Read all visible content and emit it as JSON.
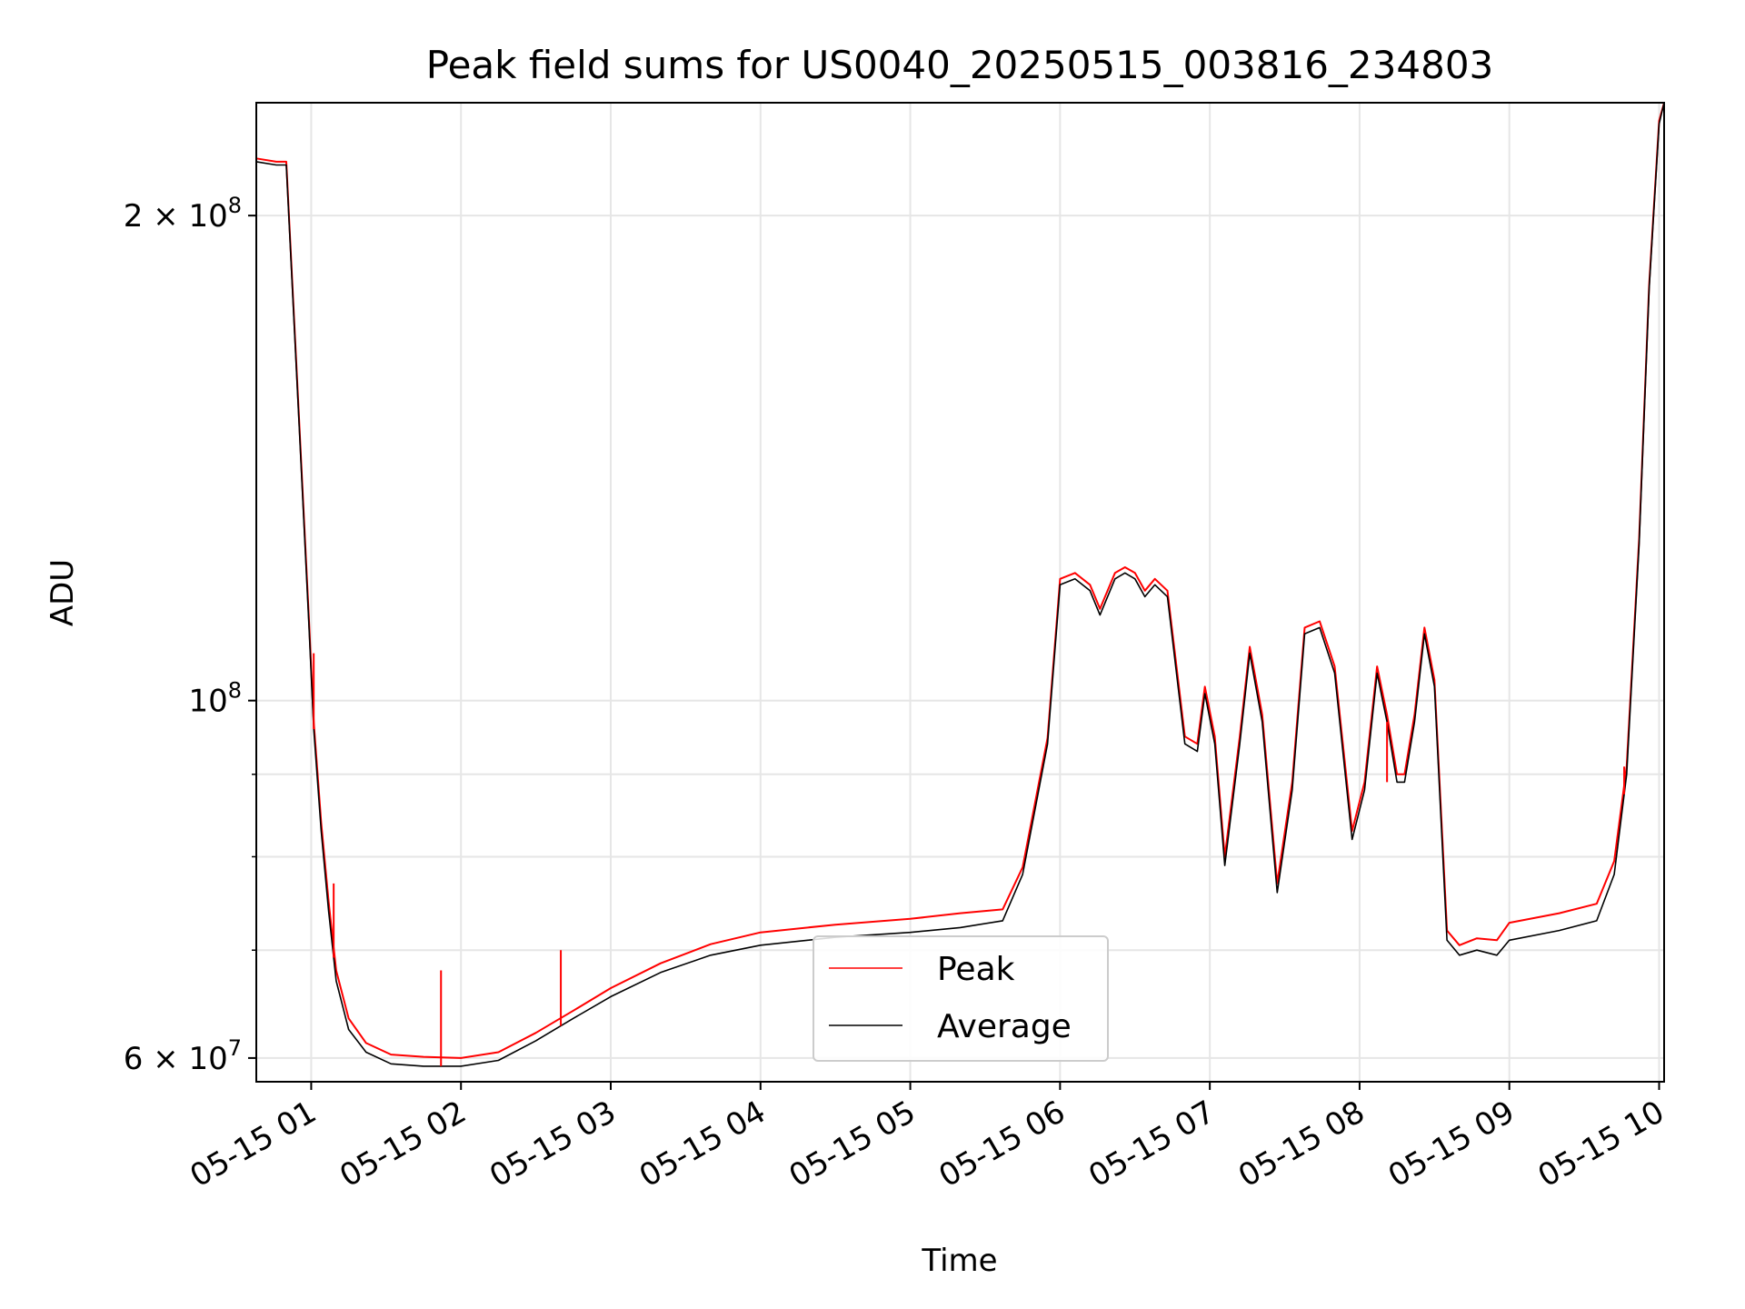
{
  "chart_data": {
    "type": "line",
    "title": "Peak field sums for US0040_20250515_003816_234803",
    "xlabel": "Time",
    "ylabel": "ADU",
    "x_ticks": [
      "05-15 01",
      "05-15 02",
      "05-15 03",
      "05-15 04",
      "05-15 05",
      "05-15 06",
      "05-15 07",
      "05-15 08",
      "05-15 09",
      "05-15 10"
    ],
    "y_ticks": [
      {
        "value": 60000000,
        "mantissa": "6",
        "times": "×",
        "base": "10",
        "exp": "7"
      },
      {
        "value": 100000000,
        "mantissa": "",
        "times": "",
        "base": "10",
        "exp": "8"
      },
      {
        "value": 200000000,
        "mantissa": "2",
        "times": "×",
        "base": "10",
        "exp": "8"
      }
    ],
    "yscale": "log",
    "xlim": [
      "2025-05-15 00:38",
      "2025-05-15 10:02"
    ],
    "ylim": [
      58000000,
      235000000
    ],
    "grid": true,
    "legend_position": "lower center",
    "colors": {
      "peak": "#ff0000",
      "average": "#000000",
      "grid": "#e6e6e6"
    },
    "series": [
      {
        "name": "Average",
        "color": "#000000",
        "x": [
          "2025-05-15 00:38",
          "2025-05-15 00:46",
          "2025-05-15 00:50",
          "2025-05-15 00:55",
          "2025-05-15 00:59",
          "2025-05-15 01:01",
          "2025-05-15 01:04",
          "2025-05-15 01:07",
          "2025-05-15 01:10",
          "2025-05-15 01:15",
          "2025-05-15 01:22",
          "2025-05-15 01:32",
          "2025-05-15 01:45",
          "2025-05-15 02:00",
          "2025-05-15 02:15",
          "2025-05-15 02:30",
          "2025-05-15 02:45",
          "2025-05-15 03:00",
          "2025-05-15 03:20",
          "2025-05-15 03:40",
          "2025-05-15 04:00",
          "2025-05-15 04:30",
          "2025-05-15 05:00",
          "2025-05-15 05:20",
          "2025-05-15 05:37",
          "2025-05-15 05:45",
          "2025-05-15 05:55",
          "2025-05-15 06:00",
          "2025-05-15 06:06",
          "2025-05-15 06:12",
          "2025-05-15 06:16",
          "2025-05-15 06:22",
          "2025-05-15 06:26",
          "2025-05-15 06:30",
          "2025-05-15 06:34",
          "2025-05-15 06:38",
          "2025-05-15 06:43",
          "2025-05-15 06:50",
          "2025-05-15 06:55",
          "2025-05-15 06:58",
          "2025-05-15 07:02",
          "2025-05-15 07:06",
          "2025-05-15 07:12",
          "2025-05-15 07:16",
          "2025-05-15 07:21",
          "2025-05-15 07:27",
          "2025-05-15 07:33",
          "2025-05-15 07:38",
          "2025-05-15 07:44",
          "2025-05-15 07:50",
          "2025-05-15 07:57",
          "2025-05-15 08:02",
          "2025-05-15 08:07",
          "2025-05-15 08:11",
          "2025-05-15 08:15",
          "2025-05-15 08:18",
          "2025-05-15 08:22",
          "2025-05-15 08:26",
          "2025-05-15 08:30",
          "2025-05-15 08:35",
          "2025-05-15 08:40",
          "2025-05-15 08:47",
          "2025-05-15 08:55",
          "2025-05-15 09:00",
          "2025-05-15 09:20",
          "2025-05-15 09:35",
          "2025-05-15 09:42",
          "2025-05-15 09:47",
          "2025-05-15 09:52",
          "2025-05-15 09:56",
          "2025-05-15 10:00",
          "2025-05-15 10:02"
        ],
        "y": [
          216000000,
          215000000,
          215000000,
          150000000,
          112000000,
          96000000,
          83000000,
          74000000,
          67000000,
          62500000,
          60500000,
          59500000,
          59300000,
          59300000,
          59800000,
          61500000,
          63500000,
          65500000,
          67800000,
          69500000,
          70500000,
          71300000,
          71800000,
          72300000,
          73000000,
          78000000,
          94000000,
          118000000,
          119000000,
          117000000,
          113000000,
          119000000,
          120000000,
          119000000,
          116000000,
          118000000,
          116000000,
          94000000,
          93000000,
          101000000,
          94000000,
          79000000,
          94000000,
          107000000,
          97000000,
          76000000,
          88000000,
          110000000,
          111000000,
          104000000,
          82000000,
          88000000,
          104000000,
          97000000,
          89000000,
          89000000,
          97000000,
          110000000,
          102000000,
          71000000,
          69500000,
          70000000,
          69500000,
          71000000,
          72000000,
          73000000,
          78000000,
          90000000,
          125000000,
          180000000,
          228000000,
          235000000
        ]
      },
      {
        "name": "Peak",
        "color": "#ff0000",
        "x": [
          "2025-05-15 00:38",
          "2025-05-15 00:46",
          "2025-05-15 00:50",
          "2025-05-15 00:55",
          "2025-05-15 00:59",
          "2025-05-15 01:01",
          "2025-05-15 01:04",
          "2025-05-15 01:07",
          "2025-05-15 01:10",
          "2025-05-15 01:15",
          "2025-05-15 01:22",
          "2025-05-15 01:32",
          "2025-05-15 01:45",
          "2025-05-15 02:00",
          "2025-05-15 02:15",
          "2025-05-15 02:30",
          "2025-05-15 02:45",
          "2025-05-15 03:00",
          "2025-05-15 03:20",
          "2025-05-15 03:40",
          "2025-05-15 04:00",
          "2025-05-15 04:30",
          "2025-05-15 05:00",
          "2025-05-15 05:20",
          "2025-05-15 05:37",
          "2025-05-15 05:45",
          "2025-05-15 05:55",
          "2025-05-15 06:00",
          "2025-05-15 06:06",
          "2025-05-15 06:12",
          "2025-05-15 06:16",
          "2025-05-15 06:22",
          "2025-05-15 06:26",
          "2025-05-15 06:30",
          "2025-05-15 06:34",
          "2025-05-15 06:38",
          "2025-05-15 06:43",
          "2025-05-15 06:50",
          "2025-05-15 06:55",
          "2025-05-15 06:58",
          "2025-05-15 07:02",
          "2025-05-15 07:06",
          "2025-05-15 07:12",
          "2025-05-15 07:16",
          "2025-05-15 07:21",
          "2025-05-15 07:27",
          "2025-05-15 07:33",
          "2025-05-15 07:38",
          "2025-05-15 07:44",
          "2025-05-15 07:50",
          "2025-05-15 07:57",
          "2025-05-15 08:02",
          "2025-05-15 08:07",
          "2025-05-15 08:11",
          "2025-05-15 08:15",
          "2025-05-15 08:18",
          "2025-05-15 08:22",
          "2025-05-15 08:26",
          "2025-05-15 08:30",
          "2025-05-15 08:35",
          "2025-05-15 08:40",
          "2025-05-15 08:47",
          "2025-05-15 08:55",
          "2025-05-15 09:00",
          "2025-05-15 09:20",
          "2025-05-15 09:35",
          "2025-05-15 09:42",
          "2025-05-15 09:47",
          "2025-05-15 09:52",
          "2025-05-15 09:56",
          "2025-05-15 10:00",
          "2025-05-15 10:02"
        ],
        "y": [
          217000000,
          216000000,
          216000000,
          151000000,
          113000000,
          97000000,
          84000000,
          75000000,
          68000000,
          63500000,
          61300000,
          60300000,
          60100000,
          60000000,
          60500000,
          62200000,
          64200000,
          66300000,
          68700000,
          70600000,
          71800000,
          72600000,
          73200000,
          73800000,
          74200000,
          78800000,
          94800000,
          119000000,
          120000000,
          118000000,
          114000000,
          120000000,
          121000000,
          120000000,
          117000000,
          119000000,
          117000000,
          95000000,
          94000000,
          102000000,
          95000000,
          80000000,
          95000000,
          108000000,
          98000000,
          77000000,
          89000000,
          111000000,
          112000000,
          105000000,
          83000000,
          89000000,
          105000000,
          98000000,
          90000000,
          90000000,
          98000000,
          111000000,
          103000000,
          72000000,
          70500000,
          71200000,
          71000000,
          72800000,
          73800000,
          74800000,
          79500000,
          91000000,
          126000000,
          181000000,
          229000000,
          235000000
        ]
      }
    ],
    "spikes": [
      {
        "x": "2025-05-15 01:01",
        "y": 107000000
      },
      {
        "x": "2025-05-15 01:09",
        "y": 77000000
      },
      {
        "x": "2025-05-15 01:52",
        "y": 68000000
      },
      {
        "x": "2025-05-15 02:40",
        "y": 70000000
      },
      {
        "x": "2025-05-15 08:11",
        "y": 89000000
      },
      {
        "x": "2025-05-15 09:46",
        "y": 91000000
      }
    ]
  }
}
